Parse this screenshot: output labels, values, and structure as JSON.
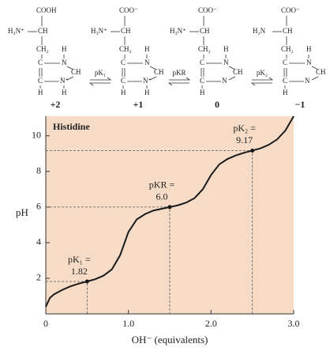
{
  "structures": [
    {
      "carboxyl": "COOH",
      "amine": "H₃N⁺",
      "alpha": "CH",
      "beta": "CH₂",
      "c4": "C",
      "n3": "N",
      "n3h": "H",
      "c2": "CH",
      "n1": "N⁺",
      "n1h": "H",
      "c5": "C",
      "c5h": "H",
      "charge": "+2"
    },
    {
      "carboxyl": "COO⁻",
      "amine": "H₃N⁺",
      "alpha": "CH",
      "beta": "CH₂",
      "c4": "C",
      "n3": "N",
      "n3h": "H",
      "c2": "CH",
      "n1": "N⁺",
      "n1h": "H",
      "c5": "C",
      "c5h": "H",
      "charge": "+1"
    },
    {
      "carboxyl": "COO⁻",
      "amine": "H₃N⁺",
      "alpha": "CH",
      "beta": "CH₂",
      "c4": "C",
      "n3": "N",
      "n3h": "H",
      "c2": "CH",
      "n1": "N",
      "c5": "C",
      "c5h": "H",
      "charge": "0"
    },
    {
      "carboxyl": "COO⁻",
      "amine": "H₂N",
      "alpha": "CH",
      "beta": "CH₂",
      "c4": "C",
      "n3": "N",
      "n3h": "H",
      "c2": "CH",
      "n1": "N",
      "c5": "C",
      "c5h": "H",
      "charge": "−1"
    }
  ],
  "equilibria": [
    "pK₁",
    "pKR",
    "pK₂"
  ],
  "chart_data": {
    "type": "line",
    "title": "Histidine",
    "x_label": "OH⁻ (equivalents)",
    "y_label": "pH",
    "series": [
      {
        "color": "#1a1a1a",
        "x": [
          0,
          0.05,
          0.1,
          0.2,
          0.3,
          0.4,
          0.5,
          0.6,
          0.7,
          0.8,
          0.9,
          1.0,
          1.1,
          1.2,
          1.3,
          1.4,
          1.5,
          1.6,
          1.7,
          1.8,
          1.9,
          2.0,
          2.1,
          2.2,
          2.3,
          2.4,
          2.5,
          2.6,
          2.7,
          2.8,
          2.9,
          3.0
        ],
        "values": [
          0.4,
          0.9,
          1.1,
          1.35,
          1.55,
          1.7,
          1.82,
          1.95,
          2.15,
          2.5,
          3.3,
          4.6,
          5.3,
          5.6,
          5.8,
          5.9,
          6.0,
          6.1,
          6.25,
          6.5,
          7.0,
          7.8,
          8.4,
          8.7,
          8.9,
          9.05,
          9.17,
          9.3,
          9.5,
          9.8,
          10.3,
          11.1
        ]
      }
    ],
    "annotations": [
      {
        "text": "pK₁ =",
        "x": 0.5,
        "y": 1.82,
        "label": "1.82"
      },
      {
        "text": "pKR =",
        "x": 1.5,
        "y": 6.0,
        "label": "6.0"
      },
      {
        "text": "pK₂ =",
        "x": 2.5,
        "y": 9.17,
        "label": "9.17"
      }
    ],
    "xlim": [
      0,
      3.0
    ],
    "ylim": [
      0,
      11.1
    ],
    "xticks": [
      0,
      {
        "value": 1,
        "label": "1.0"
      },
      {
        "value": 2,
        "label": "2.0"
      },
      {
        "value": 3,
        "label": "3.0"
      }
    ],
    "yticks": [
      2,
      4,
      6,
      8,
      10
    ],
    "background": "#f6dcc6"
  }
}
